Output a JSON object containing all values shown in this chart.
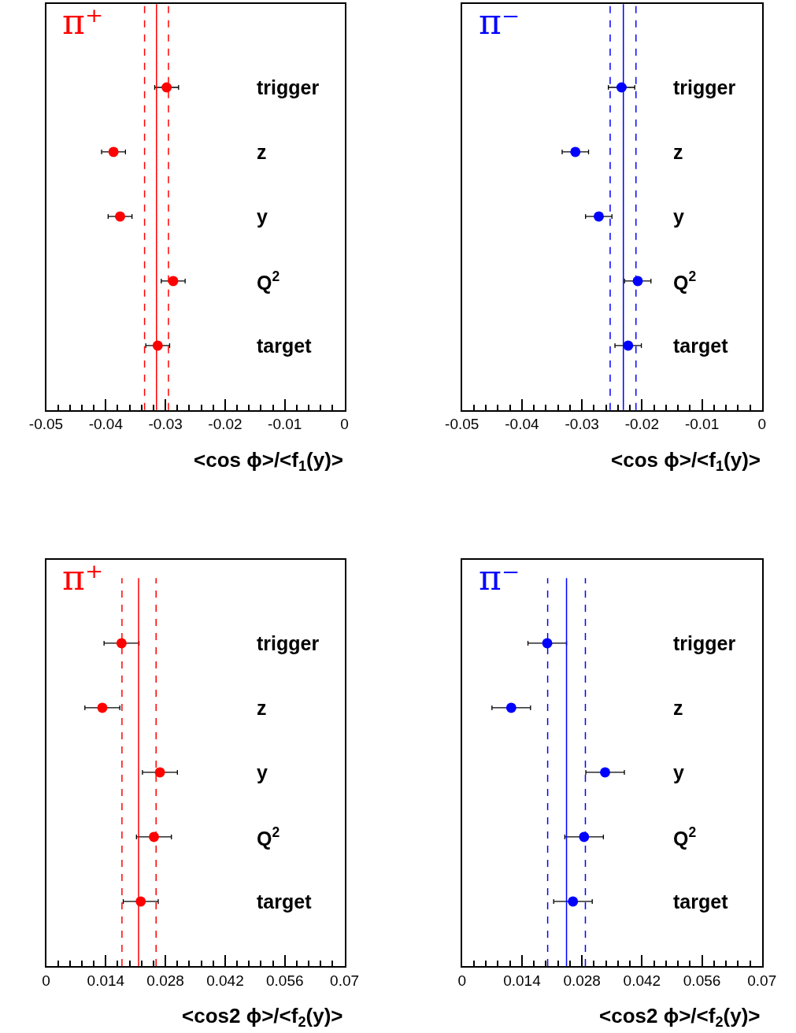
{
  "chart_data": [
    {
      "type": "scatter",
      "title": "π⁺",
      "xlabel": "<cos ϕ>/<f$_{1}$(y)>",
      "orientation": "horizontal",
      "marker": "circle",
      "color": "#ff0000",
      "categories": [
        "trigger",
        "z",
        "y",
        "Q$^{2}$",
        "target"
      ],
      "values": [
        -0.0298,
        -0.0387,
        -0.0376,
        -0.0287,
        -0.0313
      ],
      "errors": [
        0.002,
        0.002,
        0.002,
        0.002,
        0.002
      ],
      "xlim": [
        -0.05,
        0
      ],
      "xticks": [
        -0.05,
        -0.04,
        -0.03,
        -0.02,
        -0.01,
        0
      ],
      "ref_lines": [
        {
          "axis": "x",
          "value": -0.0315,
          "color": "#ff0000",
          "line_style": "solid"
        },
        {
          "axis": "x",
          "value": -0.0335,
          "color": "#ff0000",
          "line_style": "dashed"
        },
        {
          "axis": "x",
          "value": -0.0295,
          "color": "#ff0000",
          "line_style": "dashed"
        }
      ]
    },
    {
      "type": "scatter",
      "title": "π⁻",
      "xlabel": "<cos ϕ>/<f$_{1}$(y)>",
      "orientation": "horizontal",
      "marker": "circle",
      "color": "#0000ff",
      "categories": [
        "trigger",
        "z",
        "y",
        "Q$^{2}$",
        "target"
      ],
      "values": [
        -0.0234,
        -0.0311,
        -0.0272,
        -0.0207,
        -0.0223
      ],
      "errors": [
        0.0022,
        0.0022,
        0.0022,
        0.0022,
        0.0022
      ],
      "xlim": [
        -0.05,
        0
      ],
      "xticks": [
        -0.05,
        -0.04,
        -0.03,
        -0.02,
        -0.01,
        0
      ],
      "ref_lines": [
        {
          "axis": "x",
          "value": -0.0231,
          "color": "#0000ff",
          "line_style": "solid"
        },
        {
          "axis": "x",
          "value": -0.0253,
          "color": "#0000ff",
          "line_style": "dashed"
        },
        {
          "axis": "x",
          "value": -0.021,
          "color": "#0000ff",
          "line_style": "dashed"
        }
      ]
    },
    {
      "type": "scatter",
      "title": "π⁺",
      "xlabel": "<cos2 ϕ>/<f$_{2}$(y)>",
      "orientation": "horizontal",
      "marker": "circle",
      "color": "#ff0000",
      "categories": [
        "trigger",
        "z",
        "y",
        "Q$^{2}$",
        "target"
      ],
      "values": [
        0.0177,
        0.0132,
        0.0267,
        0.0253,
        0.0222
      ],
      "errors": [
        0.0041,
        0.0041,
        0.0041,
        0.0041,
        0.0041
      ],
      "xlim": [
        0,
        0.07
      ],
      "xticks": [
        0,
        0.014,
        0.028,
        0.042,
        0.056,
        0.07
      ],
      "ref_lines": [
        {
          "axis": "x",
          "value": 0.0217,
          "color": "#ff0000",
          "line_style": "solid"
        },
        {
          "axis": "x",
          "value": 0.0178,
          "color": "#ff0000",
          "line_style": "dashed"
        },
        {
          "axis": "x",
          "value": 0.0258,
          "color": "#ff0000",
          "line_style": "dashed"
        }
      ]
    },
    {
      "type": "scatter",
      "title": "π⁻",
      "xlabel": "<cos2 ϕ>/<f$_{2}$(y)>",
      "orientation": "horizontal",
      "marker": "circle",
      "color": "#0000ff",
      "categories": [
        "trigger",
        "z",
        "y",
        "Q$^{2}$",
        "target"
      ],
      "values": [
        0.0199,
        0.0115,
        0.0334,
        0.0285,
        0.0259
      ],
      "errors": [
        0.0045,
        0.0045,
        0.0045,
        0.0045,
        0.0045
      ],
      "xlim": [
        0,
        0.07
      ],
      "xticks": [
        0,
        0.014,
        0.028,
        0.042,
        0.056,
        0.07
      ],
      "ref_lines": [
        {
          "axis": "x",
          "value": 0.0244,
          "color": "#0000ff",
          "line_style": "solid"
        },
        {
          "axis": "x",
          "value": 0.02,
          "color": "#0000ff",
          "line_style": "dashed"
        },
        {
          "axis": "x",
          "value": 0.0288,
          "color": "#0000ff",
          "line_style": "dashed"
        }
      ]
    }
  ]
}
